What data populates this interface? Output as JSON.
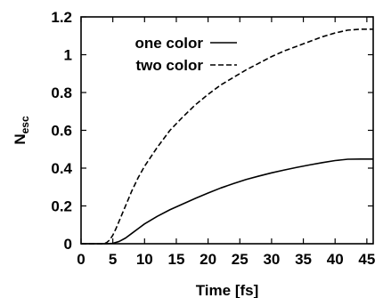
{
  "chart_data": {
    "type": "line",
    "xlabel": "Time [fs]",
    "ylabel": "N",
    "ylabel_subscript": "esc",
    "xlim": [
      0,
      46
    ],
    "ylim": [
      0,
      1.2
    ],
    "xticks": [
      0,
      5,
      10,
      15,
      20,
      25,
      30,
      35,
      40,
      45
    ],
    "yticks": [
      0,
      0.2,
      0.4,
      0.6,
      0.8,
      1,
      1.2
    ],
    "xtick_labels": [
      "0",
      "5",
      "10",
      "15",
      "20",
      "25",
      "30",
      "35",
      "40",
      "45"
    ],
    "ytick_labels": [
      "0",
      "0.2",
      "0.4",
      "0.6",
      "0.8",
      "1",
      "1.2"
    ],
    "grid": false,
    "legend_position": "top-left",
    "series": [
      {
        "name": "one color",
        "style": "solid",
        "color": "#000000",
        "x": [
          0,
          4,
          5,
          6,
          7,
          8,
          9,
          10,
          12,
          14,
          16,
          18,
          20,
          22,
          24,
          26,
          28,
          30,
          32,
          34,
          36,
          38,
          40,
          42,
          44,
          46
        ],
        "y": [
          0,
          0,
          0.002,
          0.012,
          0.03,
          0.055,
          0.08,
          0.105,
          0.145,
          0.18,
          0.21,
          0.24,
          0.268,
          0.295,
          0.318,
          0.34,
          0.358,
          0.375,
          0.39,
          0.404,
          0.417,
          0.429,
          0.44,
          0.447,
          0.448,
          0.448
        ]
      },
      {
        "name": "two color",
        "style": "dashed",
        "color": "#000000",
        "x": [
          0,
          3.5,
          4,
          4.5,
          5,
          5.5,
          6,
          7,
          8,
          9,
          10,
          12,
          14,
          16,
          18,
          20,
          22,
          24,
          26,
          28,
          30,
          32,
          34,
          36,
          38,
          40,
          42,
          44,
          46
        ],
        "y": [
          0,
          0,
          0.005,
          0.02,
          0.045,
          0.08,
          0.12,
          0.2,
          0.28,
          0.35,
          0.41,
          0.51,
          0.6,
          0.67,
          0.735,
          0.79,
          0.84,
          0.88,
          0.92,
          0.955,
          0.99,
          1.02,
          1.045,
          1.07,
          1.095,
          1.115,
          1.13,
          1.135,
          1.135
        ]
      }
    ]
  }
}
